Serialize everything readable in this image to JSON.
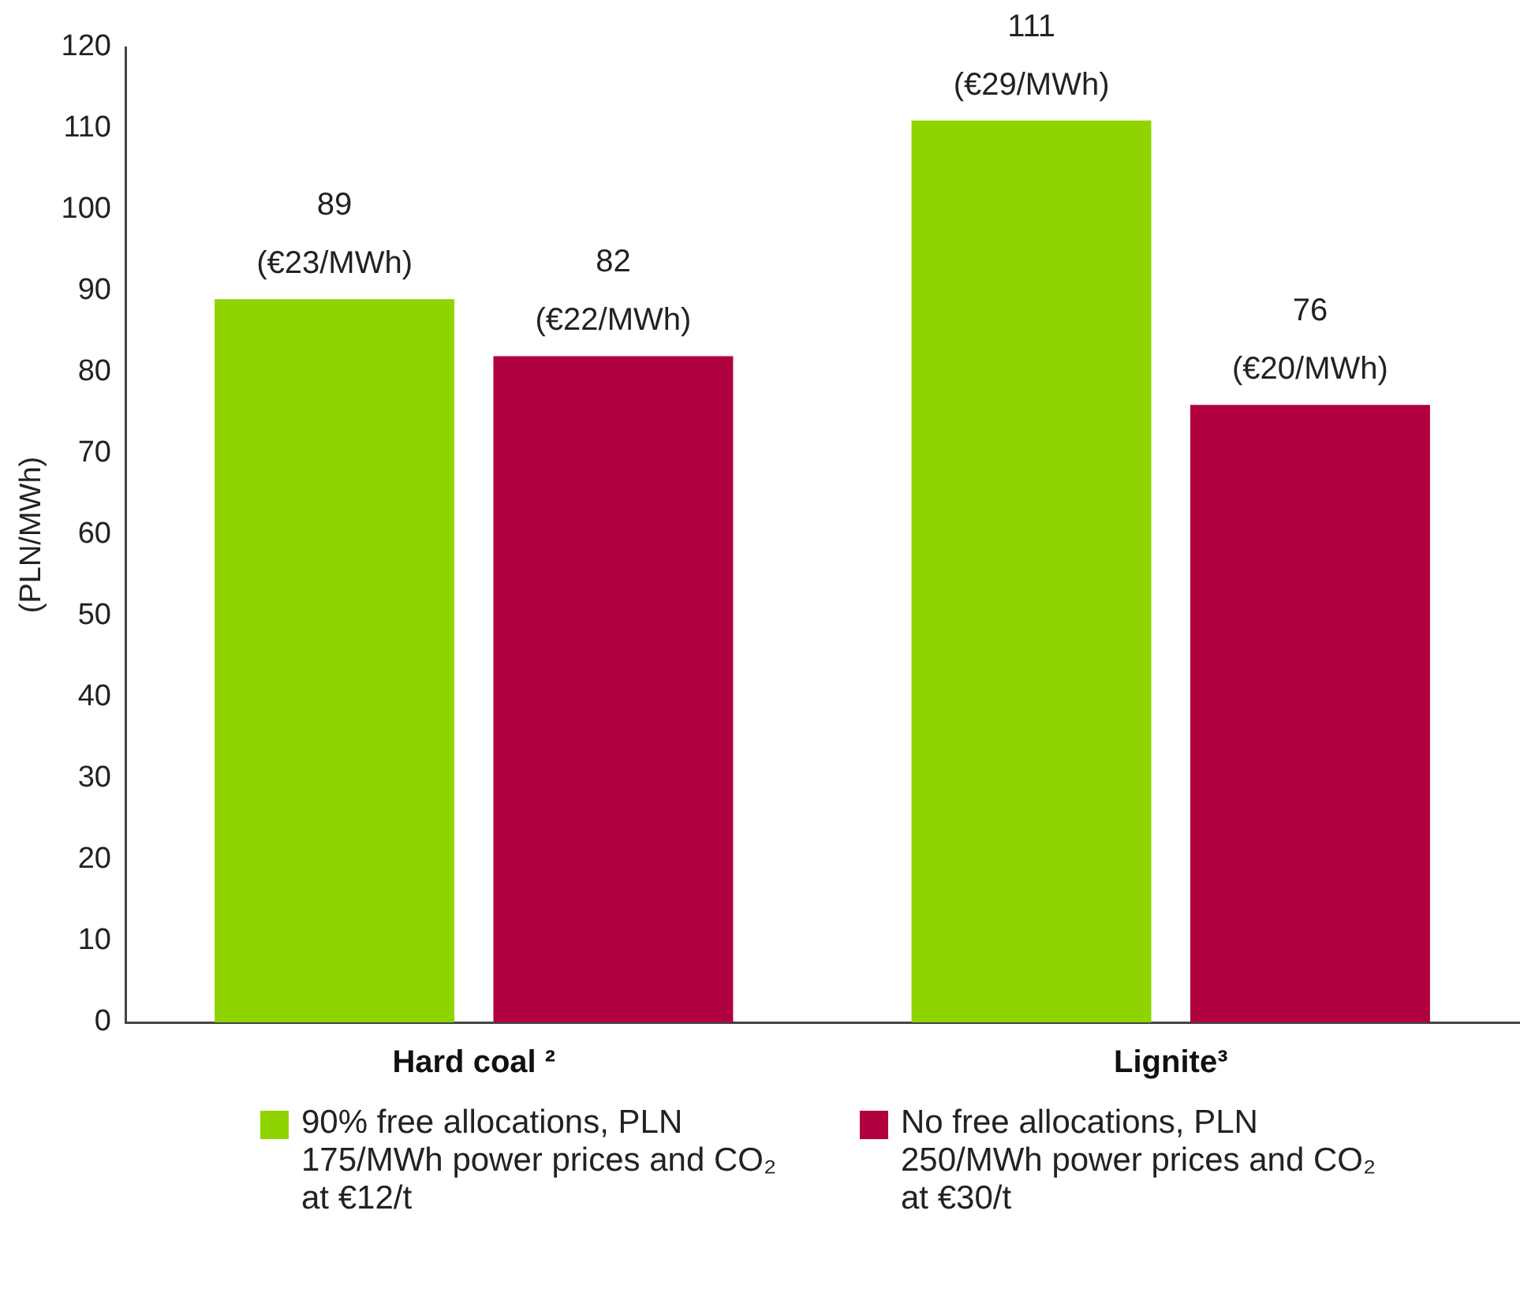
{
  "chart_data": {
    "type": "bar",
    "ylabel": "(PLN/MWh)",
    "categories": [
      "Hard coal ²",
      "Lignite³"
    ],
    "series": [
      {
        "name": "90% free allocations, PLN 175/MWh power prices and CO₂ at €12/t",
        "color": "#8fd400",
        "values": [
          89,
          111
        ],
        "value_labels": [
          "89\n(€23/MWh)",
          "111\n(€29/MWh)"
        ]
      },
      {
        "name": "No free allocations, PLN 250/MWh power prices and CO₂ at €30/t",
        "color": "#b0003f",
        "values": [
          82,
          76
        ],
        "value_labels": [
          "82\n(€22/MWh)",
          "76\n(€20/MWh)"
        ]
      }
    ],
    "ylim": [
      0,
      120
    ],
    "yticks": [
      0,
      10,
      20,
      30,
      40,
      50,
      60,
      70,
      80,
      90,
      100,
      110,
      120
    ],
    "grid": false,
    "legend": "bottom"
  }
}
